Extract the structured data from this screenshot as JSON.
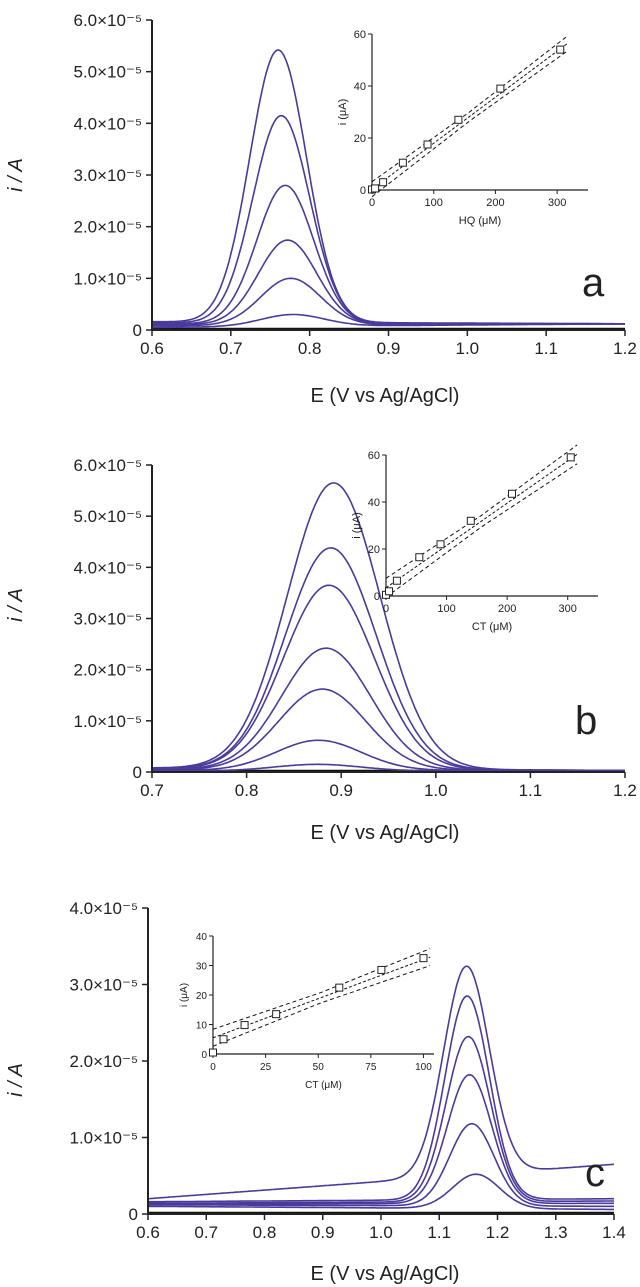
{
  "chart_data": [
    {
      "panel": "a",
      "type": "line",
      "xlabel": "E (V vs Ag/AgCl)",
      "ylabel": "i / A",
      "xlim": [
        0.6,
        1.2
      ],
      "ylim": [
        0,
        6e-05
      ],
      "x_ticks": [
        "0.6",
        "0.7",
        "0.8",
        "0.9",
        "1.0",
        "1.1",
        "1.2"
      ],
      "y_ticks": [
        "0",
        "1.0×10⁻⁵",
        "2.0×10⁻⁵",
        "3.0×10⁻⁵",
        "4.0×10⁻⁵",
        "5.0×10⁻⁵",
        "6.0×10⁻⁵"
      ],
      "line_color": "#4a3a9c",
      "series": [
        {
          "peak_x": 0.779,
          "peak_y": 3e-06,
          "width": 0.04,
          "base_left": 5e-07,
          "base_right": 1.2e-06
        },
        {
          "peak_x": 0.776,
          "peak_y": 1e-05,
          "width": 0.038,
          "base_left": 8e-07,
          "base_right": 1.2e-06
        },
        {
          "peak_x": 0.772,
          "peak_y": 1.74e-05,
          "width": 0.037,
          "base_left": 1e-06,
          "base_right": 1.2e-06
        },
        {
          "peak_x": 0.769,
          "peak_y": 2.8e-05,
          "width": 0.036,
          "base_left": 1.2e-06,
          "base_right": 1.2e-06
        },
        {
          "peak_x": 0.764,
          "peak_y": 4.15e-05,
          "width": 0.036,
          "base_left": 1.4e-06,
          "base_right": 1.2e-06
        },
        {
          "peak_x": 0.76,
          "peak_y": 5.42e-05,
          "width": 0.036,
          "base_left": 1.6e-06,
          "base_right": 1.2e-06
        }
      ],
      "inset": {
        "type": "scatter",
        "xlabel": "HQ (μM)",
        "ylabel": "i (μA)",
        "xlim": [
          0,
          350
        ],
        "ylim": [
          0,
          60
        ],
        "x_ticks": [
          "0",
          "100",
          "200",
          "300"
        ],
        "y_ticks": [
          "0",
          "20",
          "40",
          "60"
        ],
        "x": [
          0,
          5,
          18,
          50,
          90,
          140,
          208,
          305
        ],
        "y": [
          0.2,
          0.6,
          3,
          10.5,
          17.5,
          27,
          39,
          54
        ],
        "fit": {
          "slope": 0.177,
          "intercept": 0.3,
          "band": 2.5
        }
      },
      "panel_label": "a"
    },
    {
      "panel": "b",
      "type": "line",
      "xlabel": "E (V vs Ag/AgCl)",
      "ylabel": "i / A",
      "xlim": [
        0.7,
        1.2
      ],
      "ylim": [
        0,
        6e-05
      ],
      "x_ticks": [
        "0.7",
        "0.8",
        "0.9",
        "1.0",
        "1.1",
        "1.2"
      ],
      "y_ticks": [
        "0",
        "1.0×10⁻⁵",
        "2.0×10⁻⁵",
        "3.0×10⁻⁵",
        "4.0×10⁻⁵",
        "5.0×10⁻⁵",
        "6.0×10⁻⁵"
      ],
      "line_color": "#4a3a9c",
      "series": [
        {
          "peak_x": 0.875,
          "peak_y": 1.5e-06,
          "width": 0.045,
          "base_left": 2e-07,
          "base_right": 2e-07
        },
        {
          "peak_x": 0.876,
          "peak_y": 6.2e-06,
          "width": 0.045,
          "base_left": 3e-07,
          "base_right": 3e-07
        },
        {
          "peak_x": 0.88,
          "peak_y": 1.62e-05,
          "width": 0.046,
          "base_left": 4e-07,
          "base_right": 3e-07
        },
        {
          "peak_x": 0.884,
          "peak_y": 2.42e-05,
          "width": 0.047,
          "base_left": 5e-07,
          "base_right": 3e-07
        },
        {
          "peak_x": 0.887,
          "peak_y": 3.65e-05,
          "width": 0.048,
          "base_left": 6e-07,
          "base_right": 3e-07
        },
        {
          "peak_x": 0.889,
          "peak_y": 4.38e-05,
          "width": 0.048,
          "base_left": 7e-07,
          "base_right": 3e-07
        },
        {
          "peak_x": 0.892,
          "peak_y": 5.65e-05,
          "width": 0.049,
          "base_left": 8e-07,
          "base_right": 3e-07
        }
      ],
      "inset": {
        "type": "scatter",
        "xlabel": "CT (μM)",
        "ylabel": "i (μA)",
        "xlim": [
          0,
          350
        ],
        "ylim": [
          0,
          60
        ],
        "x_ticks": [
          "0",
          "100",
          "200",
          "300"
        ],
        "y_ticks": [
          "0",
          "20",
          "40",
          "60"
        ],
        "x": [
          0,
          5,
          18,
          55,
          90,
          140,
          208,
          305
        ],
        "y": [
          0.5,
          2,
          6.5,
          16.5,
          22,
          32,
          43.5,
          59
        ],
        "fit": {
          "slope": 0.18,
          "intercept": 3.5,
          "band": 3.5
        }
      },
      "panel_label": "b"
    },
    {
      "panel": "c",
      "type": "line",
      "xlabel": "E (V vs Ag/AgCl)",
      "ylabel": "i / A",
      "xlim": [
        0.6,
        1.4
      ],
      "ylim": [
        0,
        4e-05
      ],
      "x_ticks": [
        "0.6",
        "0.7",
        "0.8",
        "0.9",
        "1.0",
        "1.1",
        "1.2",
        "1.3",
        "1.4"
      ],
      "y_ticks": [
        "0",
        "1.0×10⁻⁵",
        "2.0×10⁻⁵",
        "3.0×10⁻⁵",
        "4.0×10⁻⁵"
      ],
      "line_color": "#4a3a9c",
      "series": [
        {
          "peak_x": 1.163,
          "peak_y": 5.2e-06,
          "width": 0.04,
          "base_left": 1e-06,
          "base_right": 6e-07
        },
        {
          "peak_x": 1.156,
          "peak_y": 1.18e-05,
          "width": 0.038,
          "base_left": 1.2e-06,
          "base_right": 1e-06
        },
        {
          "peak_x": 1.152,
          "peak_y": 1.82e-05,
          "width": 0.038,
          "base_left": 1.3e-06,
          "base_right": 1.4e-06
        },
        {
          "peak_x": 1.15,
          "peak_y": 2.32e-05,
          "width": 0.038,
          "base_left": 1.4e-06,
          "base_right": 1.7e-06
        },
        {
          "peak_x": 1.148,
          "peak_y": 2.85e-05,
          "width": 0.038,
          "base_left": 1.6e-06,
          "base_right": 2e-06
        },
        {
          "peak_x": 1.147,
          "peak_y": 3.24e-05,
          "width": 0.039,
          "base_left": 2e-06,
          "base_right": 6.5e-06
        }
      ],
      "inset": {
        "type": "scatter",
        "xlabel": "CT (μM)",
        "ylabel": "i (μA)",
        "xlim": [
          0,
          105
        ],
        "ylim": [
          0,
          40
        ],
        "x_ticks": [
          "0",
          "25",
          "50",
          "75",
          "100"
        ],
        "y_ticks": [
          "0",
          "10",
          "20",
          "30",
          "40"
        ],
        "x": [
          0,
          5,
          15,
          30,
          60,
          80,
          100
        ],
        "y": [
          0.5,
          5,
          9.8,
          13.5,
          22.5,
          28.5,
          32.5
        ],
        "fit": {
          "slope": 0.265,
          "intercept": 5.5,
          "band": 2.5
        }
      },
      "panel_label": "c"
    }
  ]
}
